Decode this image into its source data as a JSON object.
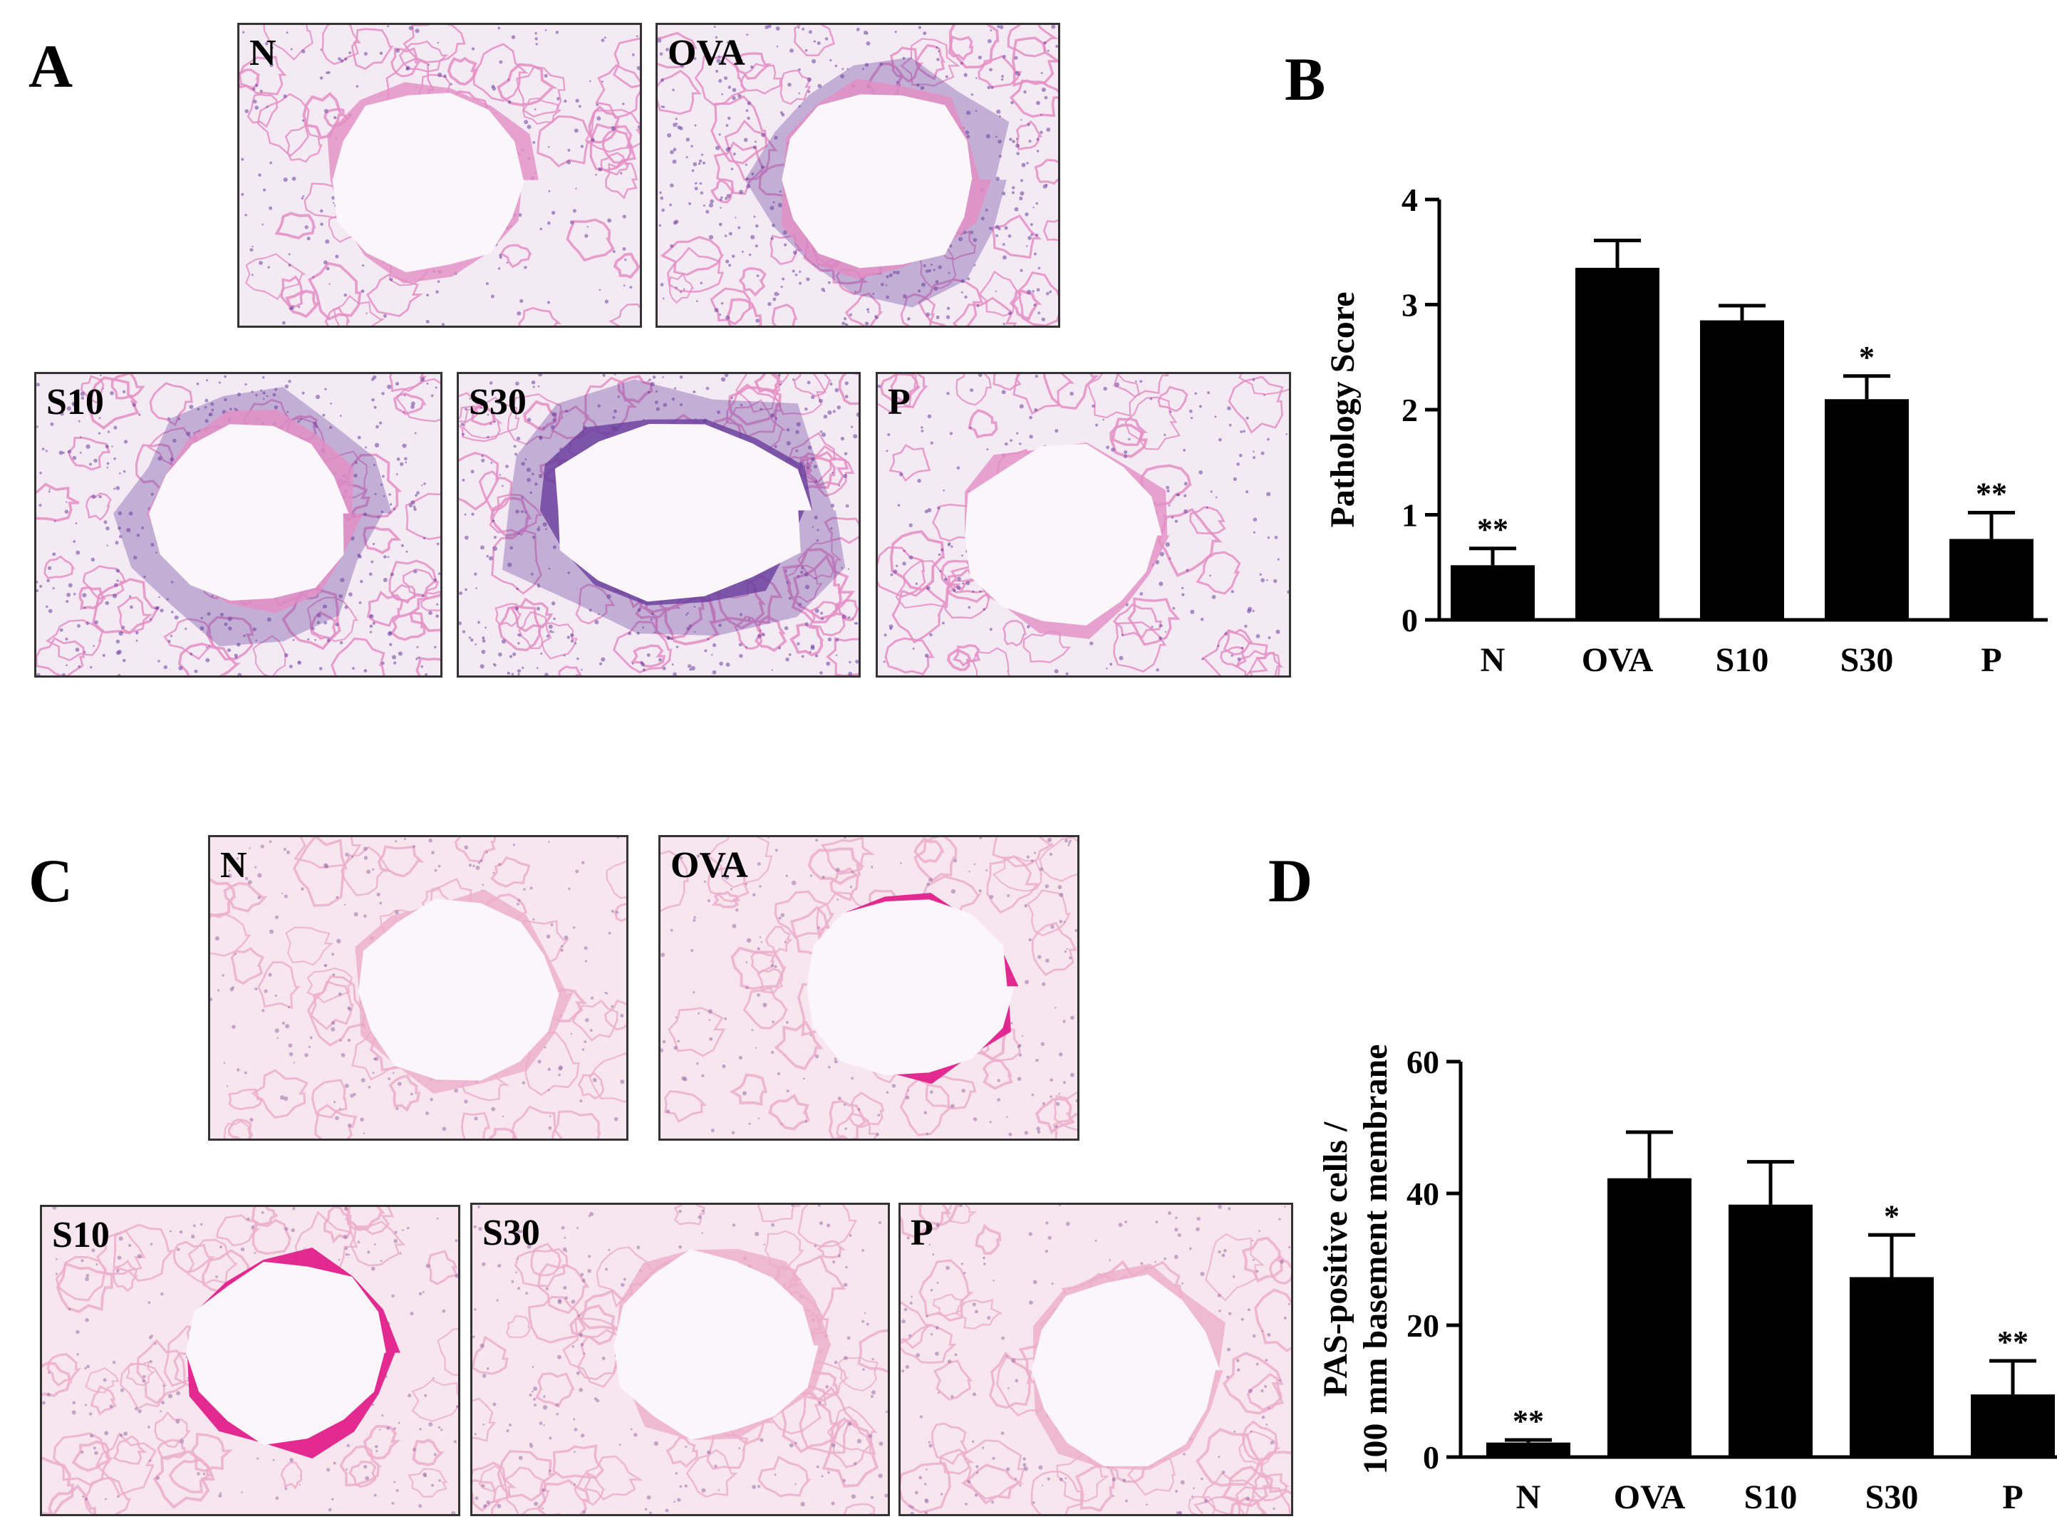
{
  "panels": {
    "A": {
      "letter": "A",
      "images": [
        {
          "label": "N",
          "stain": "he",
          "theme": "clear"
        },
        {
          "label": "OVA",
          "stain": "he",
          "theme": "inflamed"
        },
        {
          "label": "S10",
          "stain": "he",
          "theme": "inflamed"
        },
        {
          "label": "S30",
          "stain": "he",
          "theme": "dense"
        },
        {
          "label": "P",
          "stain": "he",
          "theme": "clear"
        }
      ]
    },
    "B": {
      "letter": "B"
    },
    "C": {
      "letter": "C",
      "images": [
        {
          "label": "N",
          "stain": "pas",
          "theme": "clear"
        },
        {
          "label": "OVA",
          "stain": "pas",
          "theme": "mucus"
        },
        {
          "label": "S10",
          "stain": "pas",
          "theme": "mucus"
        },
        {
          "label": "S30",
          "stain": "pas",
          "theme": "light"
        },
        {
          "label": "P",
          "stain": "pas",
          "theme": "clear"
        }
      ]
    },
    "D": {
      "letter": "D"
    }
  },
  "colors": {
    "he_background": "#f3eaf4",
    "he_tissue": "#e48fc4",
    "he_nuclei": "#6a3f9e",
    "pas_background": "#f8e6ee",
    "pas_tissue": "#ecaecb",
    "pas_mucus": "#e0208a",
    "bar_fill": "#000000"
  },
  "chart_data": [
    {
      "type": "bar",
      "panel": "B",
      "categories": [
        "N",
        "OVA",
        "S10",
        "S30",
        "P"
      ],
      "values": [
        0.52,
        3.35,
        2.85,
        2.1,
        0.77
      ],
      "errors": [
        0.16,
        0.26,
        0.14,
        0.22,
        0.25
      ],
      "significance": [
        "**",
        "",
        "",
        "*",
        "**"
      ],
      "ylabel_lines": [
        "Pathology Score"
      ],
      "ylim": [
        0,
        4
      ],
      "yticks": [
        "0",
        "1",
        "2",
        "3",
        "4"
      ],
      "ytick_values": [
        0,
        1,
        2,
        3,
        4
      ],
      "grid": false
    },
    {
      "type": "bar",
      "panel": "D",
      "categories": [
        "N",
        "OVA",
        "S10",
        "S30",
        "P"
      ],
      "values": [
        2.2,
        42.3,
        38.3,
        27.3,
        9.5
      ],
      "errors": [
        0.4,
        7.0,
        6.5,
        6.4,
        5.1
      ],
      "significance": [
        "**",
        "",
        "",
        "*",
        "**"
      ],
      "ylabel_lines": [
        "PAS-positive cells /",
        "100 mm basement membrane"
      ],
      "ylim": [
        0,
        60
      ],
      "yticks": [
        "0",
        "20",
        "40",
        "60"
      ],
      "ytick_values": [
        0,
        20,
        40,
        60
      ],
      "grid": false
    }
  ]
}
